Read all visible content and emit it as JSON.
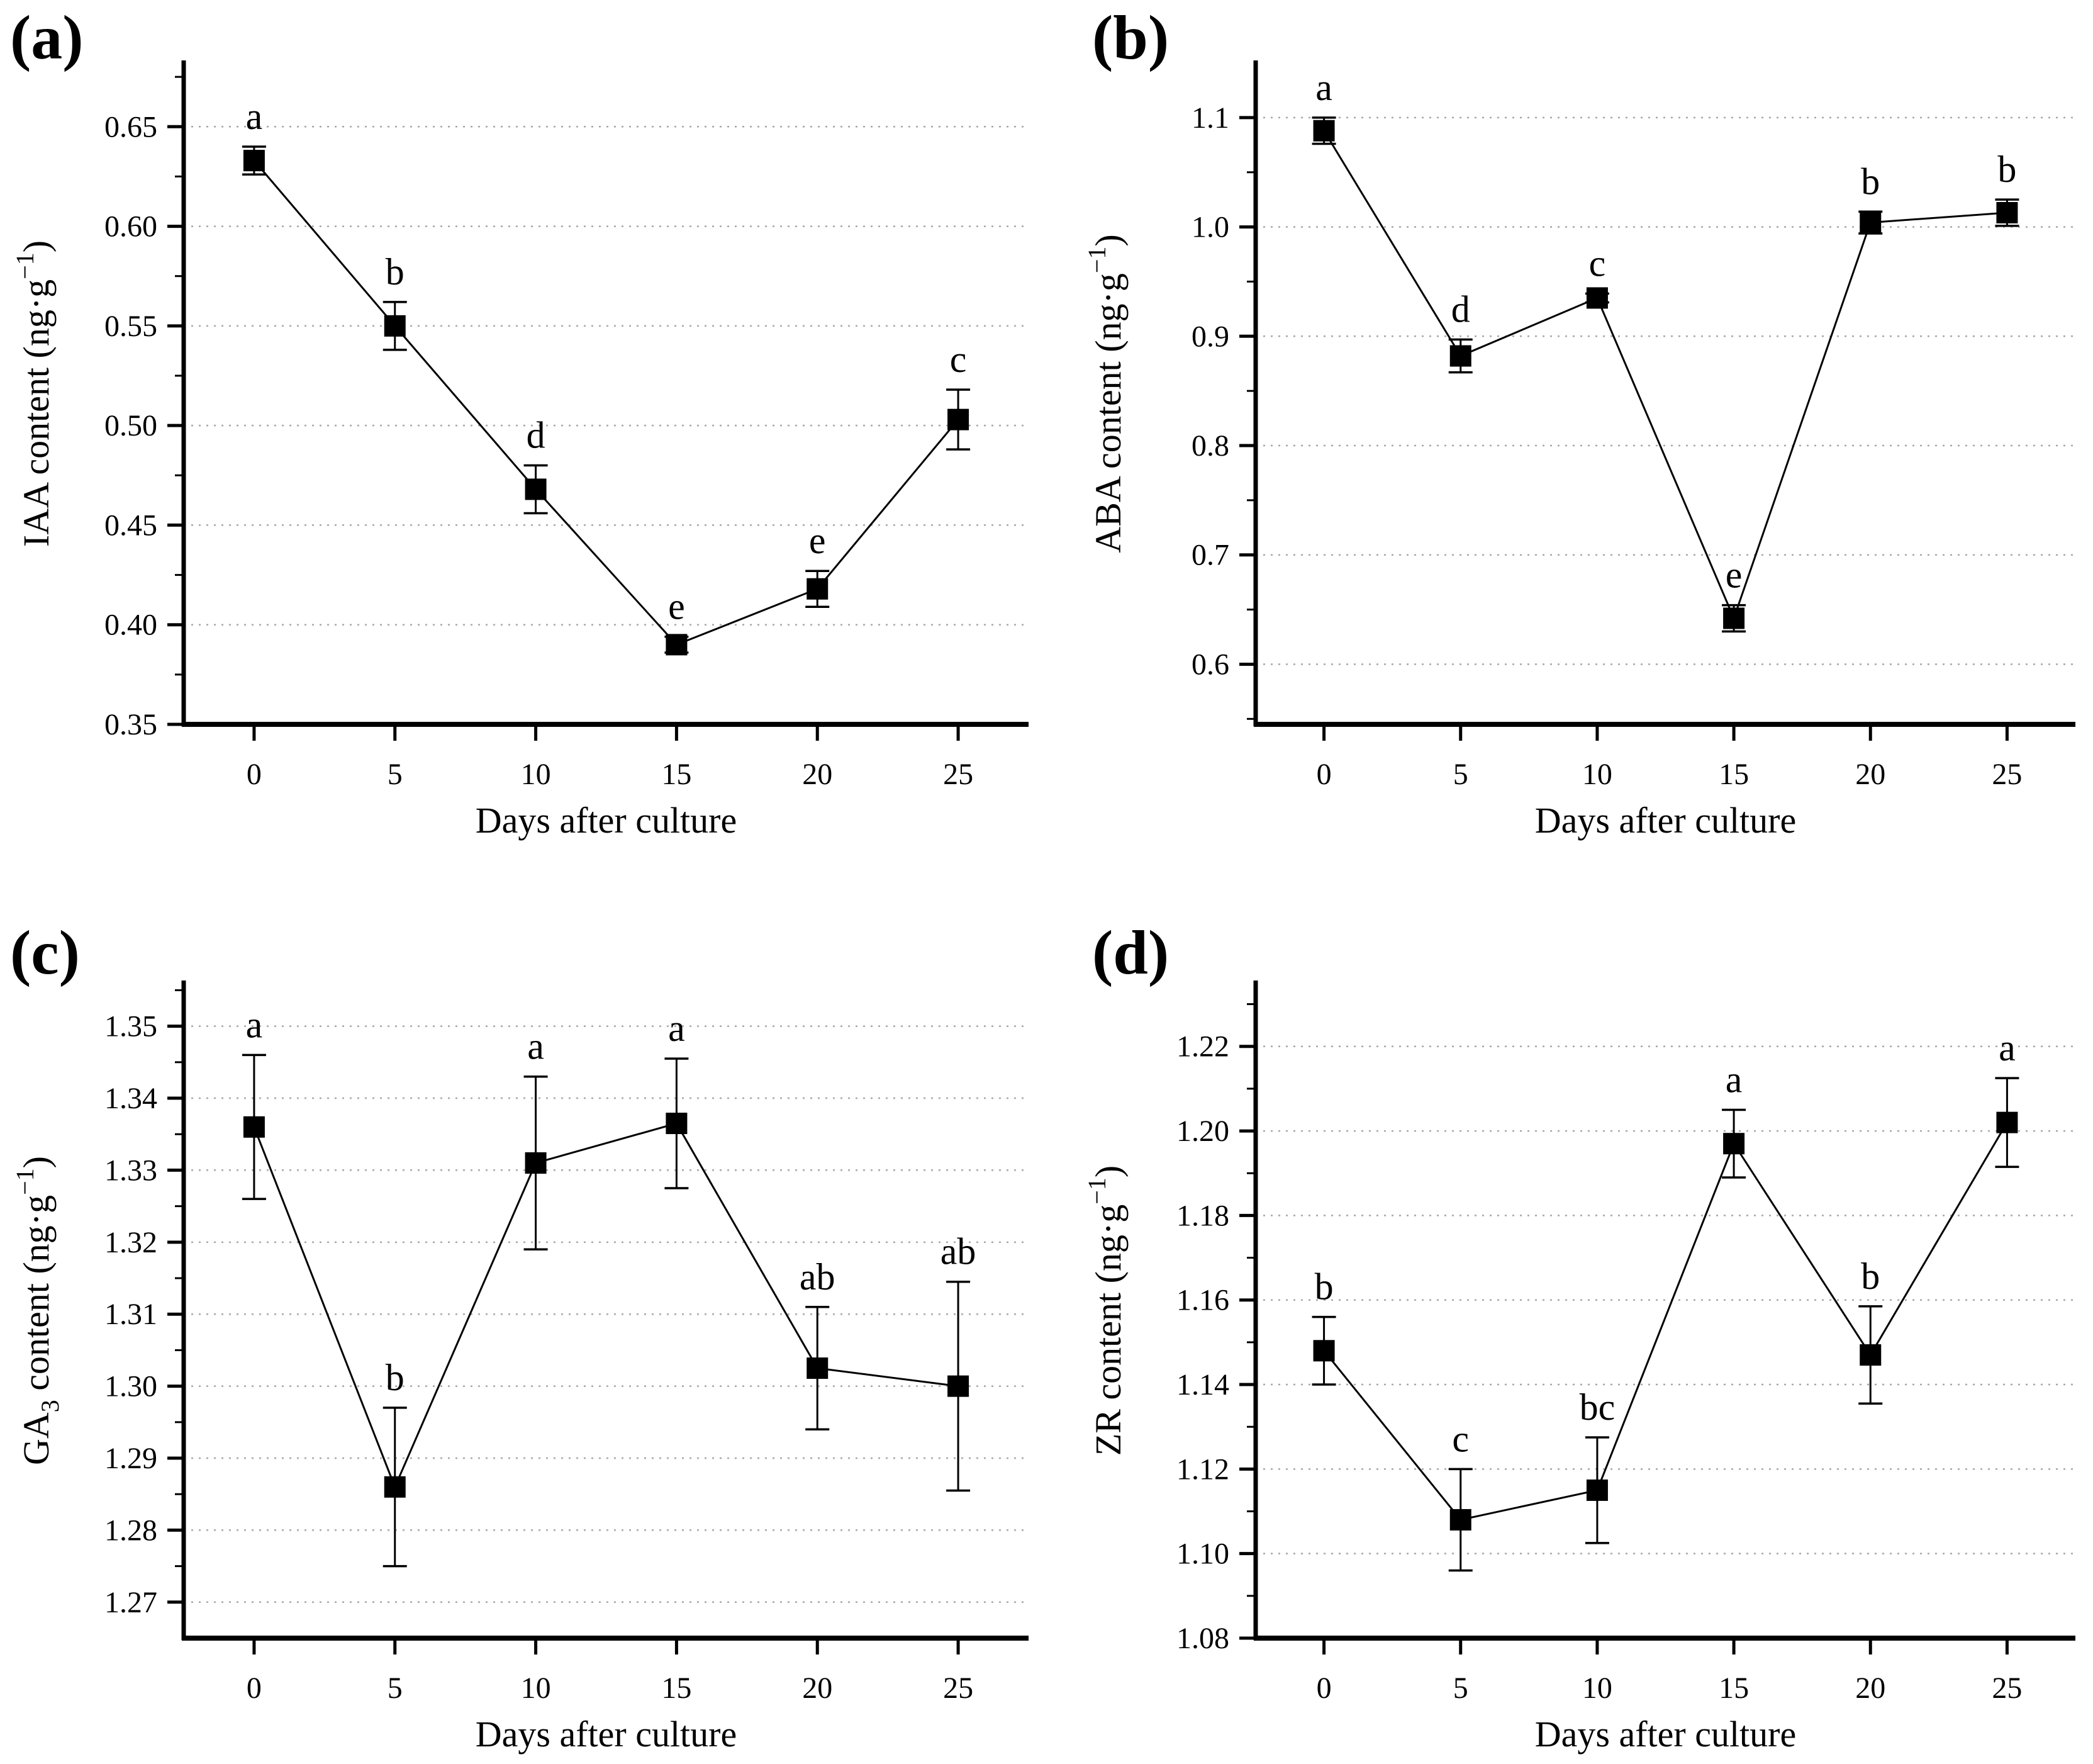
{
  "figure": {
    "background": "#ffffff",
    "axis_color": "#000000",
    "grid_color": "#a8a8a8",
    "marker_color": "#000000"
  },
  "chart_data": [
    {
      "type": "line",
      "panel_label": "(a)",
      "xlabel": "Days after culture",
      "ylabel": {
        "t1": "IAA content (ng·g",
        "sub": "",
        "t2": "",
        "sup": "−1",
        "t3": ")"
      },
      "x": [
        0,
        5,
        10,
        15,
        20,
        25
      ],
      "xticks": [
        0,
        5,
        10,
        15,
        20,
        25
      ],
      "xlim": [
        -2.5,
        27.5
      ],
      "values": [
        0.633,
        0.55,
        0.468,
        0.39,
        0.418,
        0.503
      ],
      "errors": [
        0.007,
        0.012,
        0.012,
        0.004,
        0.009,
        0.015
      ],
      "sig_letters": [
        "a",
        "b",
        "d",
        "e",
        "e",
        "c"
      ],
      "yticks": [
        0.35,
        0.4,
        0.45,
        0.5,
        0.55,
        0.6,
        0.65
      ],
      "ylim": [
        0.35,
        0.682
      ],
      "ytick_decimals": 2,
      "grid": true,
      "legend": "none",
      "marker": "square"
    },
    {
      "type": "line",
      "panel_label": "(b)",
      "xlabel": "Days after culture",
      "ylabel": {
        "t1": "ABA content (ng·g",
        "sub": "",
        "t2": "",
        "sup": "−1",
        "t3": ")"
      },
      "x": [
        0,
        5,
        10,
        15,
        20,
        25
      ],
      "xticks": [
        0,
        5,
        10,
        15,
        20,
        25
      ],
      "xlim": [
        -2.5,
        27.5
      ],
      "values": [
        1.088,
        0.882,
        0.935,
        0.642,
        1.004,
        1.013
      ],
      "errors": [
        0.012,
        0.015,
        0.004,
        0.012,
        0.01,
        0.012
      ],
      "sig_letters": [
        "a",
        "d",
        "c",
        "e",
        "b",
        "b"
      ],
      "yticks": [
        0.6,
        0.7,
        0.8,
        0.9,
        1.0,
        1.1
      ],
      "ylim": [
        0.545,
        1.15
      ],
      "ytick_decimals": 1,
      "grid": true,
      "legend": "none",
      "marker": "square"
    },
    {
      "type": "line",
      "panel_label": "(c)",
      "xlabel": "Days after culture",
      "ylabel": {
        "t1": "GA",
        "sub": "3",
        "t2": " content (ng·g",
        "sup": "−1",
        "t3": ")"
      },
      "x": [
        0,
        5,
        10,
        15,
        20,
        25
      ],
      "xticks": [
        0,
        5,
        10,
        15,
        20,
        25
      ],
      "xlim": [
        -2.5,
        27.5
      ],
      "values": [
        1.336,
        1.286,
        1.331,
        1.3365,
        1.3025,
        1.3
      ],
      "errors": [
        0.01,
        0.011,
        0.012,
        0.009,
        0.0085,
        0.0145
      ],
      "sig_letters": [
        "a",
        "b",
        "a",
        "a",
        "ab",
        "ab"
      ],
      "yticks": [
        1.27,
        1.28,
        1.29,
        1.3,
        1.31,
        1.32,
        1.33,
        1.34,
        1.35
      ],
      "ylim": [
        1.265,
        1.356
      ],
      "ytick_decimals": 2,
      "grid": true,
      "legend": "none",
      "marker": "square"
    },
    {
      "type": "line",
      "panel_label": "(d)",
      "xlabel": "Days after culture",
      "ylabel": {
        "t1": "ZR content (ng·g",
        "sub": "",
        "t2": "",
        "sup": "−1",
        "t3": ")"
      },
      "x": [
        0,
        5,
        10,
        15,
        20,
        25
      ],
      "xticks": [
        0,
        5,
        10,
        15,
        20,
        25
      ],
      "xlim": [
        -2.5,
        27.5
      ],
      "values": [
        1.148,
        1.108,
        1.115,
        1.197,
        1.147,
        1.202
      ],
      "errors": [
        0.008,
        0.012,
        0.0125,
        0.008,
        0.0115,
        0.0105
      ],
      "sig_letters": [
        "b",
        "c",
        "bc",
        "a",
        "b",
        "a"
      ],
      "yticks": [
        1.08,
        1.1,
        1.12,
        1.14,
        1.16,
        1.18,
        1.2,
        1.22
      ],
      "ylim": [
        1.08,
        1.235
      ],
      "ytick_decimals": 2,
      "grid": true,
      "legend": "none",
      "marker": "square"
    }
  ]
}
